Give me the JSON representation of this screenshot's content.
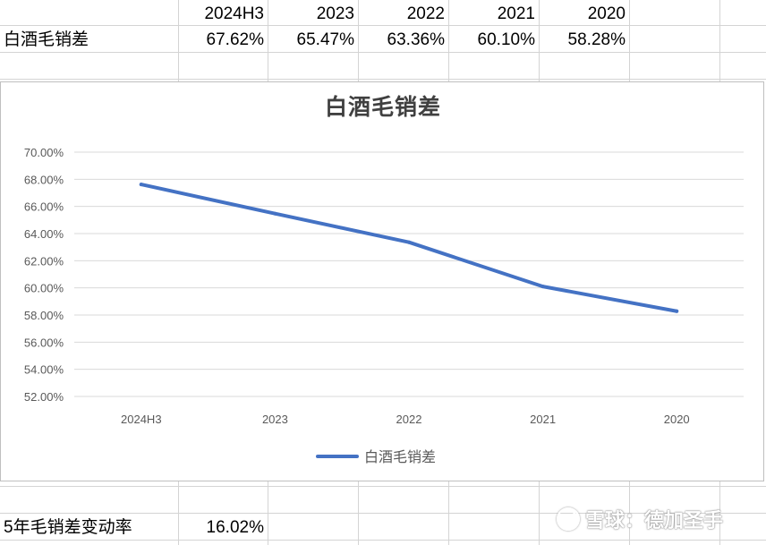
{
  "table": {
    "header": [
      "2024H3",
      "2023",
      "2022",
      "2021",
      "2020"
    ],
    "row_label": "白酒毛销差",
    "row_values": [
      "67.62%",
      "65.47%",
      "63.36%",
      "60.10%",
      "58.28%"
    ]
  },
  "footer": {
    "label": "5年毛销差变动率",
    "value": "16.02%"
  },
  "watermark": {
    "text": "雪球：德加圣手",
    "icon": "snowball-logo-icon"
  },
  "colors": {
    "line": "#4472c4",
    "gridline": "#d9d9d9",
    "axis_text": "#595959",
    "title": "#404040"
  },
  "chart_data": {
    "type": "line",
    "title": "白酒毛销差",
    "categories": [
      "2024H3",
      "2023",
      "2022",
      "2021",
      "2020"
    ],
    "series": [
      {
        "name": "白酒毛销差",
        "values": [
          67.62,
          65.47,
          63.36,
          60.1,
          58.28
        ]
      }
    ],
    "y_ticks": [
      "70.00%",
      "68.00%",
      "66.00%",
      "64.00%",
      "62.00%",
      "60.00%",
      "58.00%",
      "56.00%",
      "54.00%",
      "52.00%"
    ],
    "ylim": [
      52,
      70
    ],
    "ytick_step": 2,
    "grid": true,
    "legend": "bottom",
    "xlabel": "",
    "ylabel": ""
  }
}
